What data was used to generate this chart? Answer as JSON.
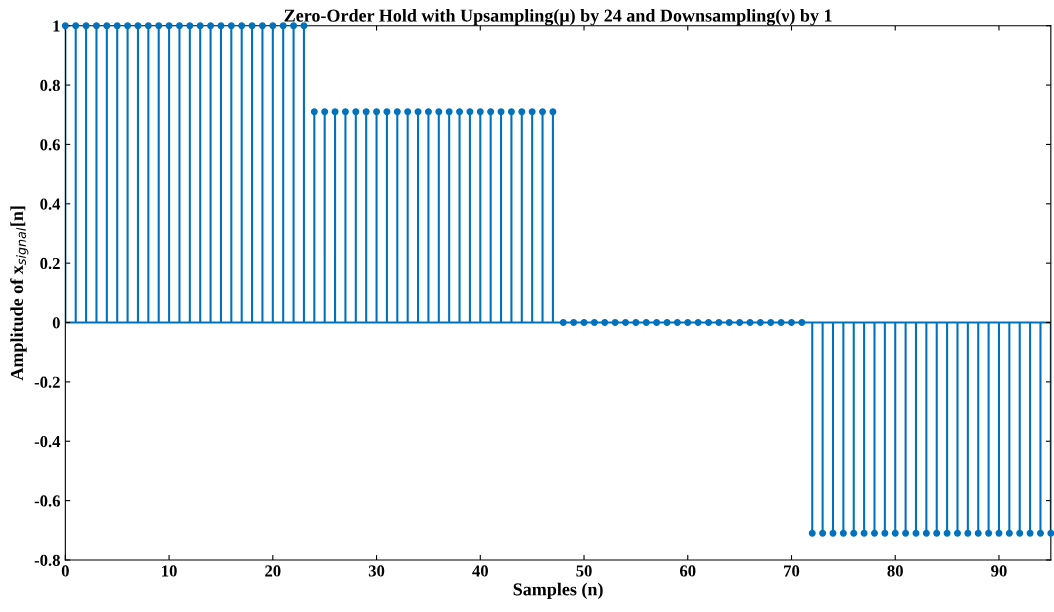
{
  "chart_data": {
    "type": "lollipop",
    "title": "Zero-Order Hold with Upsampling(μ) by 24 and Downsampling(ν) by 1",
    "xlabel": "Samples (n)",
    "ylabel": "Amplitude of x$_{signal}$[n]",
    "x": [
      0,
      1,
      2,
      3,
      4,
      5,
      6,
      7,
      8,
      9,
      10,
      11,
      12,
      13,
      14,
      15,
      16,
      17,
      18,
      19,
      20,
      21,
      22,
      23,
      24,
      25,
      26,
      27,
      28,
      29,
      30,
      31,
      32,
      33,
      34,
      35,
      36,
      37,
      38,
      39,
      40,
      41,
      42,
      43,
      44,
      45,
      46,
      47,
      48,
      49,
      50,
      51,
      52,
      53,
      54,
      55,
      56,
      57,
      58,
      59,
      60,
      61,
      62,
      63,
      64,
      65,
      66,
      67,
      68,
      69,
      70,
      71,
      72,
      73,
      74,
      75,
      76,
      77,
      78,
      79,
      80,
      81,
      82,
      83,
      84,
      85,
      86,
      87,
      88,
      89,
      90,
      91,
      92,
      93,
      94,
      95
    ],
    "values": [
      1,
      1,
      1,
      1,
      1,
      1,
      1,
      1,
      1,
      1,
      1,
      1,
      1,
      1,
      1,
      1,
      1,
      1,
      1,
      1,
      1,
      1,
      1,
      1,
      0.71,
      0.71,
      0.71,
      0.71,
      0.71,
      0.71,
      0.71,
      0.71,
      0.71,
      0.71,
      0.71,
      0.71,
      0.71,
      0.71,
      0.71,
      0.71,
      0.71,
      0.71,
      0.71,
      0.71,
      0.71,
      0.71,
      0.71,
      0.71,
      0,
      0,
      0,
      0,
      0,
      0,
      0,
      0,
      0,
      0,
      0,
      0,
      0,
      0,
      0,
      0,
      0,
      0,
      0,
      0,
      0,
      0,
      0,
      0,
      -0.71,
      -0.71,
      -0.71,
      -0.71,
      -0.71,
      -0.71,
      -0.71,
      -0.71,
      -0.71,
      -0.71,
      -0.71,
      -0.71,
      -0.71,
      -0.71,
      -0.71,
      -0.71,
      -0.71,
      -0.71,
      -0.71,
      -0.71,
      -0.71,
      -0.71,
      -0.71,
      -0.71
    ],
    "color": "#0072bd",
    "ref_lines": [
      {
        "axis": "y",
        "value": 0,
        "color": "#0072bd"
      }
    ],
    "marker": "circle",
    "grid": false,
    "xlim": [
      0,
      95
    ],
    "xticks": [
      0,
      10,
      20,
      30,
      40,
      50,
      60,
      70,
      80,
      90
    ],
    "ylim": [
      -0.8,
      1
    ],
    "yticks": [
      -0.8,
      -0.6,
      -0.4,
      -0.2,
      0,
      0.2,
      0.4,
      0.6,
      0.8,
      1
    ]
  }
}
